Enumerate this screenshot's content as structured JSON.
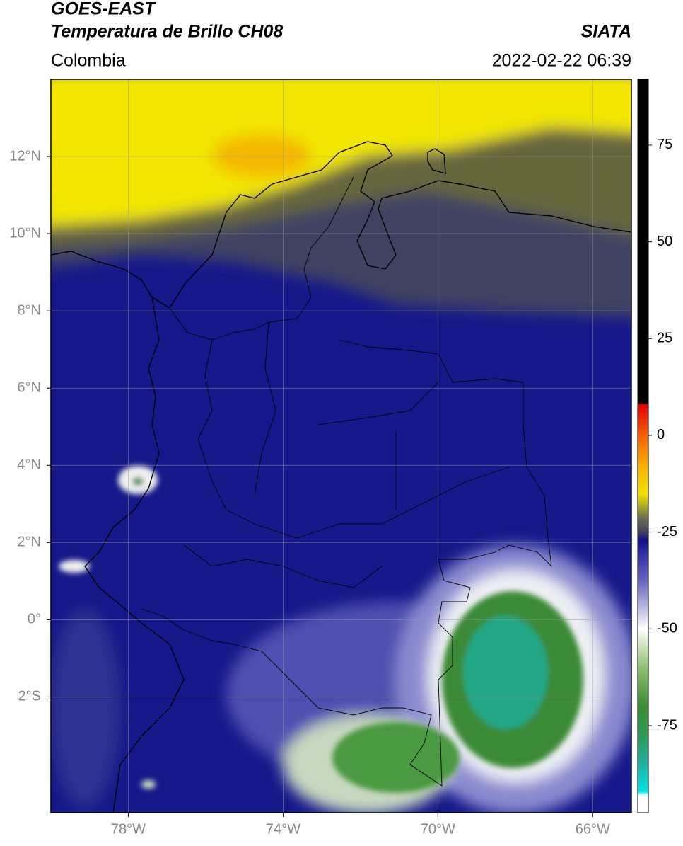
{
  "chart_data": {
    "type": "map",
    "title": "GOES-EAST",
    "subtitle": "Temperatura de Brillo CH08",
    "source": "SIATA",
    "region": "Colombia",
    "datetime": "2022-02-22 06:39",
    "xlim": [
      -80,
      -65
    ],
    "xticks": [
      {
        "value": -78,
        "label": "78°W"
      },
      {
        "value": -74,
        "label": "74°W"
      },
      {
        "value": -70,
        "label": "70°W"
      },
      {
        "value": -66,
        "label": "66°W"
      }
    ],
    "ylim": [
      -5,
      14
    ],
    "yticks": [
      {
        "value": 12,
        "label": "12°N"
      },
      {
        "value": 10,
        "label": "10°N"
      },
      {
        "value": 8,
        "label": "8°N"
      },
      {
        "value": 6,
        "label": "6°N"
      },
      {
        "value": 4,
        "label": "4°N"
      },
      {
        "value": 2,
        "label": "2°N"
      },
      {
        "value": 0,
        "label": "0°"
      },
      {
        "value": -2,
        "label": "2°S"
      }
    ],
    "grid": true,
    "colorbar": {
      "lim": [
        -97.5,
        92
      ],
      "ticks": [
        75,
        50,
        25,
        0,
        -25,
        -50,
        -75
      ],
      "colormap": [
        {
          "value": -97.5,
          "color": "#ffffff"
        },
        {
          "value": -93,
          "color": "#ffffff"
        },
        {
          "value": -92,
          "color": "#00e5e5"
        },
        {
          "value": -85,
          "color": "#20b0a0"
        },
        {
          "value": -78,
          "color": "#2e9a5a"
        },
        {
          "value": -70,
          "color": "#3a8a30"
        },
        {
          "value": -60,
          "color": "#8fc070"
        },
        {
          "value": -52,
          "color": "#e8f0e0"
        },
        {
          "value": -50,
          "color": "#ffffff"
        },
        {
          "value": -45,
          "color": "#c0c0e0"
        },
        {
          "value": -38,
          "color": "#6a6ac0"
        },
        {
          "value": -30,
          "color": "#2a2aa0"
        },
        {
          "value": -27,
          "color": "#101080"
        },
        {
          "value": -25,
          "color": "#404060"
        },
        {
          "value": -21,
          "color": "#707050"
        },
        {
          "value": -18,
          "color": "#b0b020"
        },
        {
          "value": -15,
          "color": "#f0e000"
        },
        {
          "value": -8,
          "color": "#f8b000"
        },
        {
          "value": 0,
          "color": "#f06000"
        },
        {
          "value": 8,
          "color": "#e00000"
        },
        {
          "value": 8.4,
          "color": "#000000"
        },
        {
          "value": 92,
          "color": "#000000"
        }
      ]
    }
  }
}
